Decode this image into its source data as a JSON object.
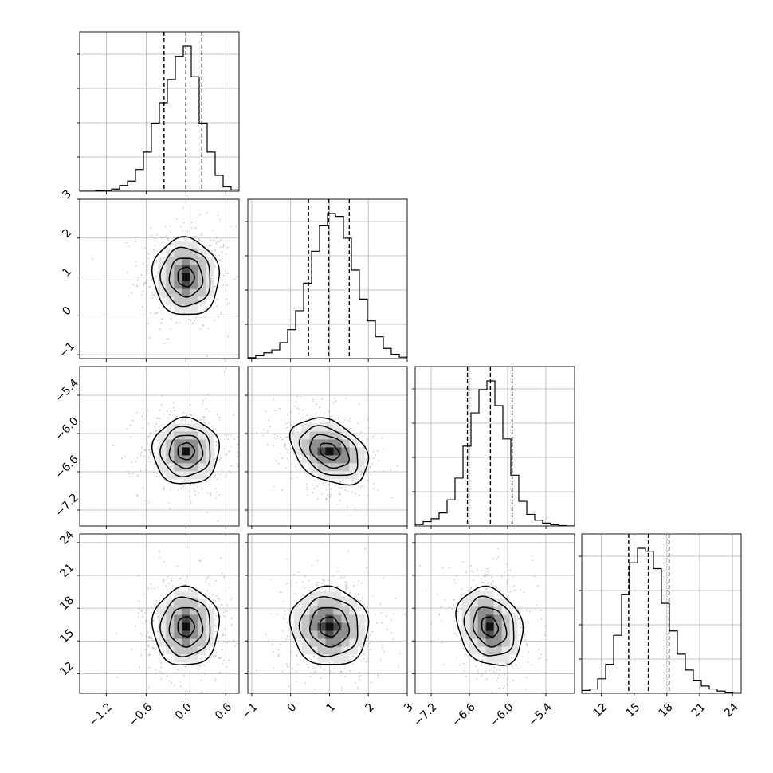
{
  "chart_data": {
    "type": "corner",
    "parameters": [
      {
        "ticks": [
          -1.2,
          -0.6,
          0.0,
          0.6
        ],
        "tick_labels": [
          "−1.2",
          "−0.6",
          "0.0",
          "0.6"
        ],
        "range": [
          -1.6,
          0.8
        ],
        "quantiles": [
          -0.33,
          0.0,
          0.24
        ],
        "hist": [
          0.0,
          0.0,
          0.003,
          0.006,
          0.015,
          0.04,
          0.07,
          0.15,
          0.27,
          0.47,
          0.61,
          0.77,
          0.93,
          1.0,
          0.79,
          0.47,
          0.27,
          0.11,
          0.03,
          0.009
        ]
      },
      {
        "ticks": [
          -1,
          0,
          1,
          2,
          3
        ],
        "tick_labels": [
          "−1",
          "0",
          "1",
          "2",
          "3"
        ],
        "range": [
          -1.1,
          3.0
        ],
        "quantiles": [
          0.46,
          0.98,
          1.51
        ],
        "hist": [
          0.006,
          0.02,
          0.04,
          0.06,
          0.11,
          0.2,
          0.33,
          0.52,
          0.74,
          0.92,
          1.0,
          0.98,
          0.83,
          0.61,
          0.41,
          0.26,
          0.15,
          0.07,
          0.03,
          0.01
        ]
      },
      {
        "ticks": [
          -7.2,
          -6.6,
          -6.0,
          -5.4
        ],
        "tick_labels": [
          "−7.2",
          "−6.6",
          "−6.0",
          "−5.4"
        ],
        "range": [
          -7.45,
          -4.95
        ],
        "quantiles": [
          -6.63,
          -6.27,
          -5.93
        ],
        "hist": [
          0.01,
          0.03,
          0.05,
          0.09,
          0.18,
          0.33,
          0.55,
          0.78,
          0.94,
          1.0,
          0.83,
          0.6,
          0.35,
          0.17,
          0.08,
          0.04,
          0.02,
          0.008,
          0.003,
          0.0
        ]
      },
      {
        "ticks": [
          12,
          15,
          18,
          21,
          24
        ],
        "tick_labels": [
          "12",
          "15",
          "18",
          "21",
          "24"
        ],
        "range": [
          10.2,
          24.8
        ],
        "quantiles": [
          14.5,
          16.3,
          18.2
        ],
        "hist": [
          0.02,
          0.03,
          0.1,
          0.2,
          0.4,
          0.68,
          0.9,
          1.0,
          0.98,
          0.86,
          0.62,
          0.43,
          0.27,
          0.16,
          0.09,
          0.05,
          0.03,
          0.015,
          0.008,
          0.004
        ]
      }
    ],
    "pairs": [
      {
        "x": 0,
        "y": 1,
        "mean": [
          0.0,
          1.0
        ],
        "sd": [
          0.25,
          0.5
        ],
        "rho": -0.05
      },
      {
        "x": 0,
        "y": 2,
        "mean": [
          0.0,
          -6.28
        ],
        "sd": [
          0.25,
          0.26
        ],
        "rho": 0.0
      },
      {
        "x": 1,
        "y": 2,
        "mean": [
          1.0,
          -6.28
        ],
        "sd": [
          0.5,
          0.26
        ],
        "rho": -0.35
      },
      {
        "x": 0,
        "y": 3,
        "mean": [
          0.0,
          16.3
        ],
        "sd": [
          0.25,
          1.8
        ],
        "rho": 0.0
      },
      {
        "x": 1,
        "y": 3,
        "mean": [
          1.0,
          16.3
        ],
        "sd": [
          0.5,
          1.8
        ],
        "rho": -0.05
      },
      {
        "x": 2,
        "y": 3,
        "mean": [
          -6.28,
          16.3
        ],
        "sd": [
          0.26,
          1.8
        ],
        "rho": -0.2
      }
    ],
    "contour_levels_sigma": [
      0.5,
      1.0,
      1.5,
      2.0
    ],
    "grid": true,
    "colors": {
      "line": "#000000",
      "points": "#888888",
      "grid": "#b0b0b0"
    }
  }
}
